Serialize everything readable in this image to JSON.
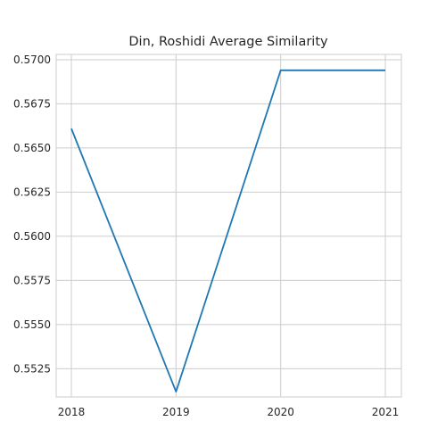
{
  "chart_data": {
    "type": "line",
    "title": "Din, Roshidi Average Similarity",
    "xlabel": "",
    "ylabel": "",
    "x": [
      "2018",
      "2019",
      "2020",
      "2021"
    ],
    "series": [
      {
        "values": [
          0.5661,
          0.5512,
          0.5694,
          0.5694
        ]
      }
    ],
    "ylim": [
      0.5509,
      0.5703
    ],
    "yticks": [
      "0.5525",
      "0.5550",
      "0.5575",
      "0.5600",
      "0.5625",
      "0.5650",
      "0.5675",
      "0.5700"
    ],
    "grid": true,
    "colors": {
      "line": "#1f77b4",
      "grid": "#cccccc",
      "frame": "#cccccc"
    }
  }
}
